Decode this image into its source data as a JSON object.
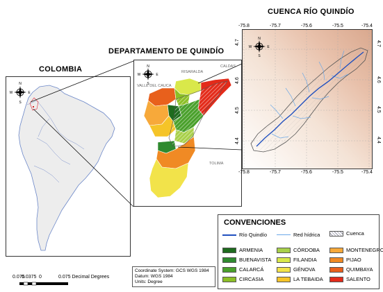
{
  "titles": {
    "colombia": "COLOMBIA",
    "quindio": "DEPARTAMENTO DE QUINDÍO",
    "cuenca": "CUENCA RÍO QUINDÍO"
  },
  "north_arrow": {
    "n": "N",
    "s": "S",
    "e": "E",
    "w": "W"
  },
  "quindio_map": {
    "labels": {
      "risaralda": "RISARALDA",
      "caldas": "CALDAS",
      "valle": "VALLE DEL CAUCA",
      "tolima": "TOLIMA"
    }
  },
  "cuenca_map": {
    "x_ticks": [
      "-75.8",
      "-75.7",
      "-75.6",
      "-75.5",
      "-75.4"
    ],
    "y_ticks": [
      "4.7",
      "4.6",
      "4.5",
      "4.4"
    ]
  },
  "legend": {
    "title": "CONVENCIONES",
    "lines": [
      {
        "label": "Río Quindío",
        "color": "#1f4fbf"
      },
      {
        "label": "Red hídrica",
        "color": "#6aa8e8"
      },
      {
        "label": "Cuenca",
        "pattern": "hatch"
      }
    ],
    "municipalities": [
      {
        "name": "ARMENIA",
        "color": "#1e6b1e"
      },
      {
        "name": "BUENAVISTA",
        "color": "#2f8a2f"
      },
      {
        "name": "CALARCÁ",
        "color": "#4aa02c"
      },
      {
        "name": "CIRCASIA",
        "color": "#8cbf26"
      },
      {
        "name": "CÓRDOBA",
        "color": "#a8d04a"
      },
      {
        "name": "FILANDIA",
        "color": "#d9e84a"
      },
      {
        "name": "GÉNOVA",
        "color": "#f2e34a"
      },
      {
        "name": "LA TEBAIDA",
        "color": "#f5c428"
      },
      {
        "name": "MONTENEGRO",
        "color": "#f7a93a"
      },
      {
        "name": "PIJAO",
        "color": "#f08a24"
      },
      {
        "name": "QUIMBAYA",
        "color": "#e8601c"
      },
      {
        "name": "SALENTO",
        "color": "#e32b1a"
      }
    ]
  },
  "info": {
    "line1": "Coordinate System: GCS WGS 1984",
    "line2": "Datum: WGS 1984",
    "line3": "Units: Degree"
  },
  "scale": {
    "labels": [
      "0.075",
      "0.0375",
      "0",
      "0.075 Decimal Degrees"
    ]
  }
}
